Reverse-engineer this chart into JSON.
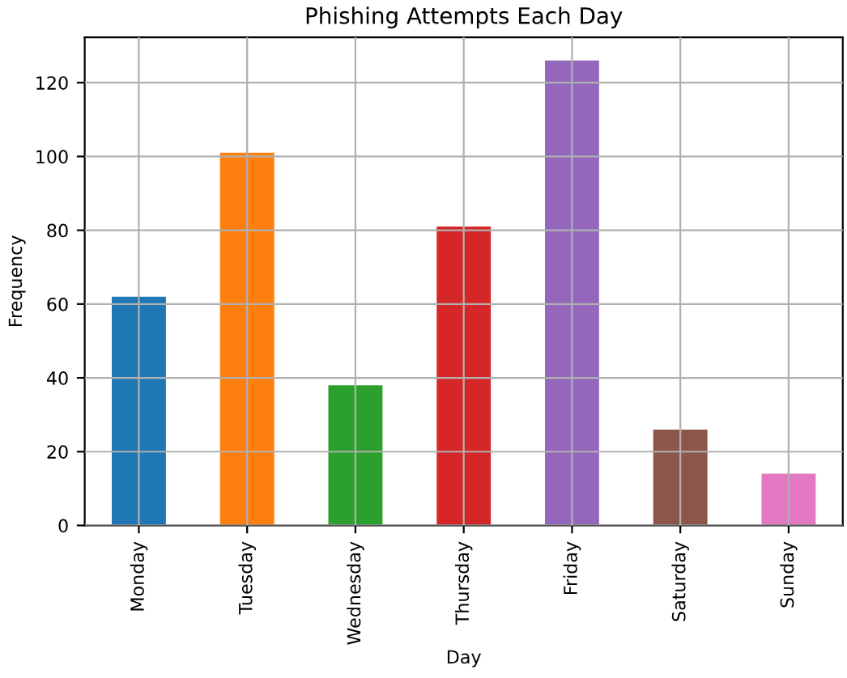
{
  "chart_data": {
    "type": "bar",
    "title": "Phishing Attempts Each Day",
    "xlabel": "Day",
    "ylabel": "Frequency",
    "categories": [
      "Monday",
      "Tuesday",
      "Wednesday",
      "Thursday",
      "Friday",
      "Saturday",
      "Sunday"
    ],
    "values": [
      62,
      101,
      38,
      81,
      126,
      26,
      14
    ],
    "colors": [
      "#1f77b4",
      "#ff7f0e",
      "#2ca02c",
      "#d62728",
      "#9467bd",
      "#8c564b",
      "#e377c2"
    ],
    "ylim": [
      0,
      132.3
    ],
    "yticks": [
      0,
      20,
      40,
      60,
      80,
      100,
      120
    ],
    "grid": true,
    "legend": false
  }
}
